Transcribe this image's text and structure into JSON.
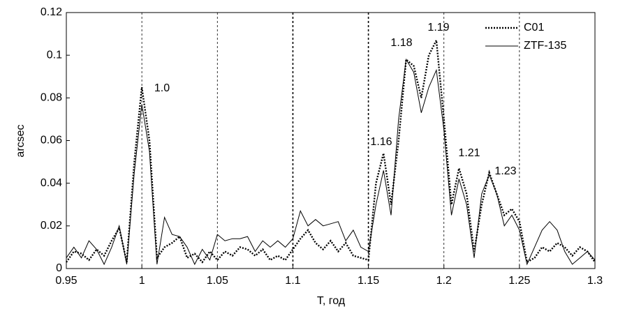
{
  "chart_data": {
    "type": "line",
    "xlabel": "T, год",
    "ylabel": "arcsec",
    "xlim": [
      0.95,
      1.3
    ],
    "xticks": [
      0.95,
      1,
      1.05,
      1.1,
      1.15,
      1.2,
      1.25,
      1.3
    ],
    "ylim": [
      0,
      0.12
    ],
    "yticks": [
      0,
      0.02,
      0.04,
      0.06,
      0.08,
      0.1,
      0.12
    ],
    "grid": true,
    "legend": "upper right",
    "annotations": [
      "1.0",
      "1.16",
      "1.18",
      "1.19",
      "1.21",
      "1.23"
    ],
    "x": [
      0.95,
      0.955,
      0.96,
      0.965,
      0.97,
      0.975,
      0.98,
      0.985,
      0.99,
      0.995,
      1,
      1.005,
      1.01,
      1.015,
      1.02,
      1.025,
      1.03,
      1.035,
      1.04,
      1.045,
      1.05,
      1.055,
      1.06,
      1.065,
      1.07,
      1.075,
      1.08,
      1.085,
      1.09,
      1.095,
      1.1,
      1.105,
      1.11,
      1.115,
      1.12,
      1.125,
      1.13,
      1.135,
      1.14,
      1.145,
      1.15,
      1.155,
      1.16,
      1.165,
      1.17,
      1.175,
      1.18,
      1.185,
      1.19,
      1.195,
      1.2,
      1.205,
      1.21,
      1.215,
      1.22,
      1.225,
      1.23,
      1.235,
      1.24,
      1.245,
      1.25,
      1.255,
      1.26,
      1.265,
      1.27,
      1.275,
      1.28,
      1.285,
      1.29,
      1.295,
      1.3
    ],
    "series": [
      {
        "name": "C01",
        "color": "#000000",
        "linestyle": "dotted",
        "values": [
          0.003,
          0.008,
          0.007,
          0.004,
          0.009,
          0.006,
          0.013,
          0.019,
          0.003,
          0.05,
          0.085,
          0.06,
          0.005,
          0.01,
          0.012,
          0.015,
          0.005,
          0.007,
          0.003,
          0.008,
          0.004,
          0.008,
          0.006,
          0.01,
          0.009,
          0.006,
          0.009,
          0.004,
          0.006,
          0.004,
          0.009,
          0.014,
          0.018,
          0.012,
          0.009,
          0.013,
          0.008,
          0.012,
          0.006,
          0.005,
          0.004,
          0.04,
          0.054,
          0.03,
          0.06,
          0.098,
          0.095,
          0.08,
          0.1,
          0.107,
          0.07,
          0.03,
          0.047,
          0.035,
          0.008,
          0.03,
          0.045,
          0.035,
          0.025,
          0.028,
          0.022,
          0.003,
          0.005,
          0.01,
          0.008,
          0.012,
          0.01,
          0.006,
          0.01,
          0.008,
          0.003
        ]
      },
      {
        "name": "ZTF-135",
        "color": "#000000",
        "linestyle": "solid",
        "values": [
          0.005,
          0.01,
          0.005,
          0.013,
          0.009,
          0.002,
          0.01,
          0.02,
          0.002,
          0.045,
          0.077,
          0.055,
          0.002,
          0.024,
          0.016,
          0.015,
          0.01,
          0.002,
          0.009,
          0.004,
          0.016,
          0.013,
          0.014,
          0.014,
          0.015,
          0.008,
          0.013,
          0.01,
          0.013,
          0.01,
          0.014,
          0.027,
          0.02,
          0.023,
          0.02,
          0.021,
          0.022,
          0.013,
          0.018,
          0.01,
          0.008,
          0.03,
          0.046,
          0.025,
          0.07,
          0.098,
          0.092,
          0.073,
          0.085,
          0.093,
          0.065,
          0.025,
          0.042,
          0.03,
          0.005,
          0.035,
          0.044,
          0.035,
          0.02,
          0.025,
          0.018,
          0.002,
          0.01,
          0.018,
          0.022,
          0.018,
          0.008,
          0.002,
          0.005,
          0.008,
          0.004
        ]
      }
    ]
  }
}
